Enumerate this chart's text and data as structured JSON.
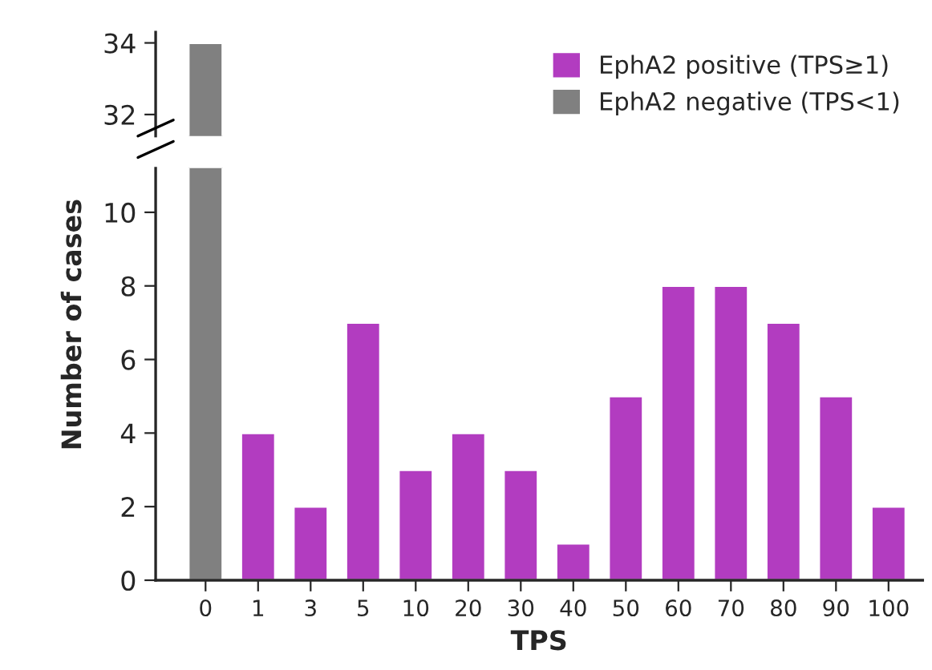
{
  "chart_data": [
    {
      "type": "bar",
      "categories": [
        "0",
        "1",
        "3",
        "5",
        "10",
        "20",
        "30",
        "40",
        "50",
        "60",
        "70",
        "80",
        "90",
        "100"
      ],
      "series": [
        {
          "color": "#808080",
          "values": [
            34,
            null,
            null,
            null,
            null,
            null,
            null,
            null,
            null,
            null,
            null,
            null,
            null,
            null
          ]
        }
      ],
      "ylim": [
        31.4,
        34.3
      ],
      "yticks": [
        32,
        34
      ],
      "tick_labels": "y",
      "grid": false
    },
    {
      "type": "bar",
      "categories": [
        "0",
        "1",
        "3",
        "5",
        "10",
        "20",
        "30",
        "40",
        "50",
        "60",
        "70",
        "80",
        "90",
        "100"
      ],
      "series": [
        {
          "name": "EphA2 positive (TPS≥1)",
          "color": "#b23cc0",
          "values": [
            null,
            4,
            2,
            7,
            3,
            4,
            3,
            1,
            5,
            8,
            8,
            7,
            5,
            2
          ]
        },
        {
          "name": "EphA2 negative (TPS<1)",
          "color": "#808080",
          "values": [
            null,
            null,
            null,
            null,
            null,
            null,
            null,
            null,
            null,
            null,
            null,
            null,
            null,
            null
          ]
        }
      ],
      "xlabel": "TPS",
      "ylabel": "Number of cases",
      "ylim": [
        0,
        11.2
      ],
      "yticks": [
        0,
        2,
        4,
        6,
        8,
        10
      ],
      "legend": "top right",
      "grid": false
    }
  ]
}
